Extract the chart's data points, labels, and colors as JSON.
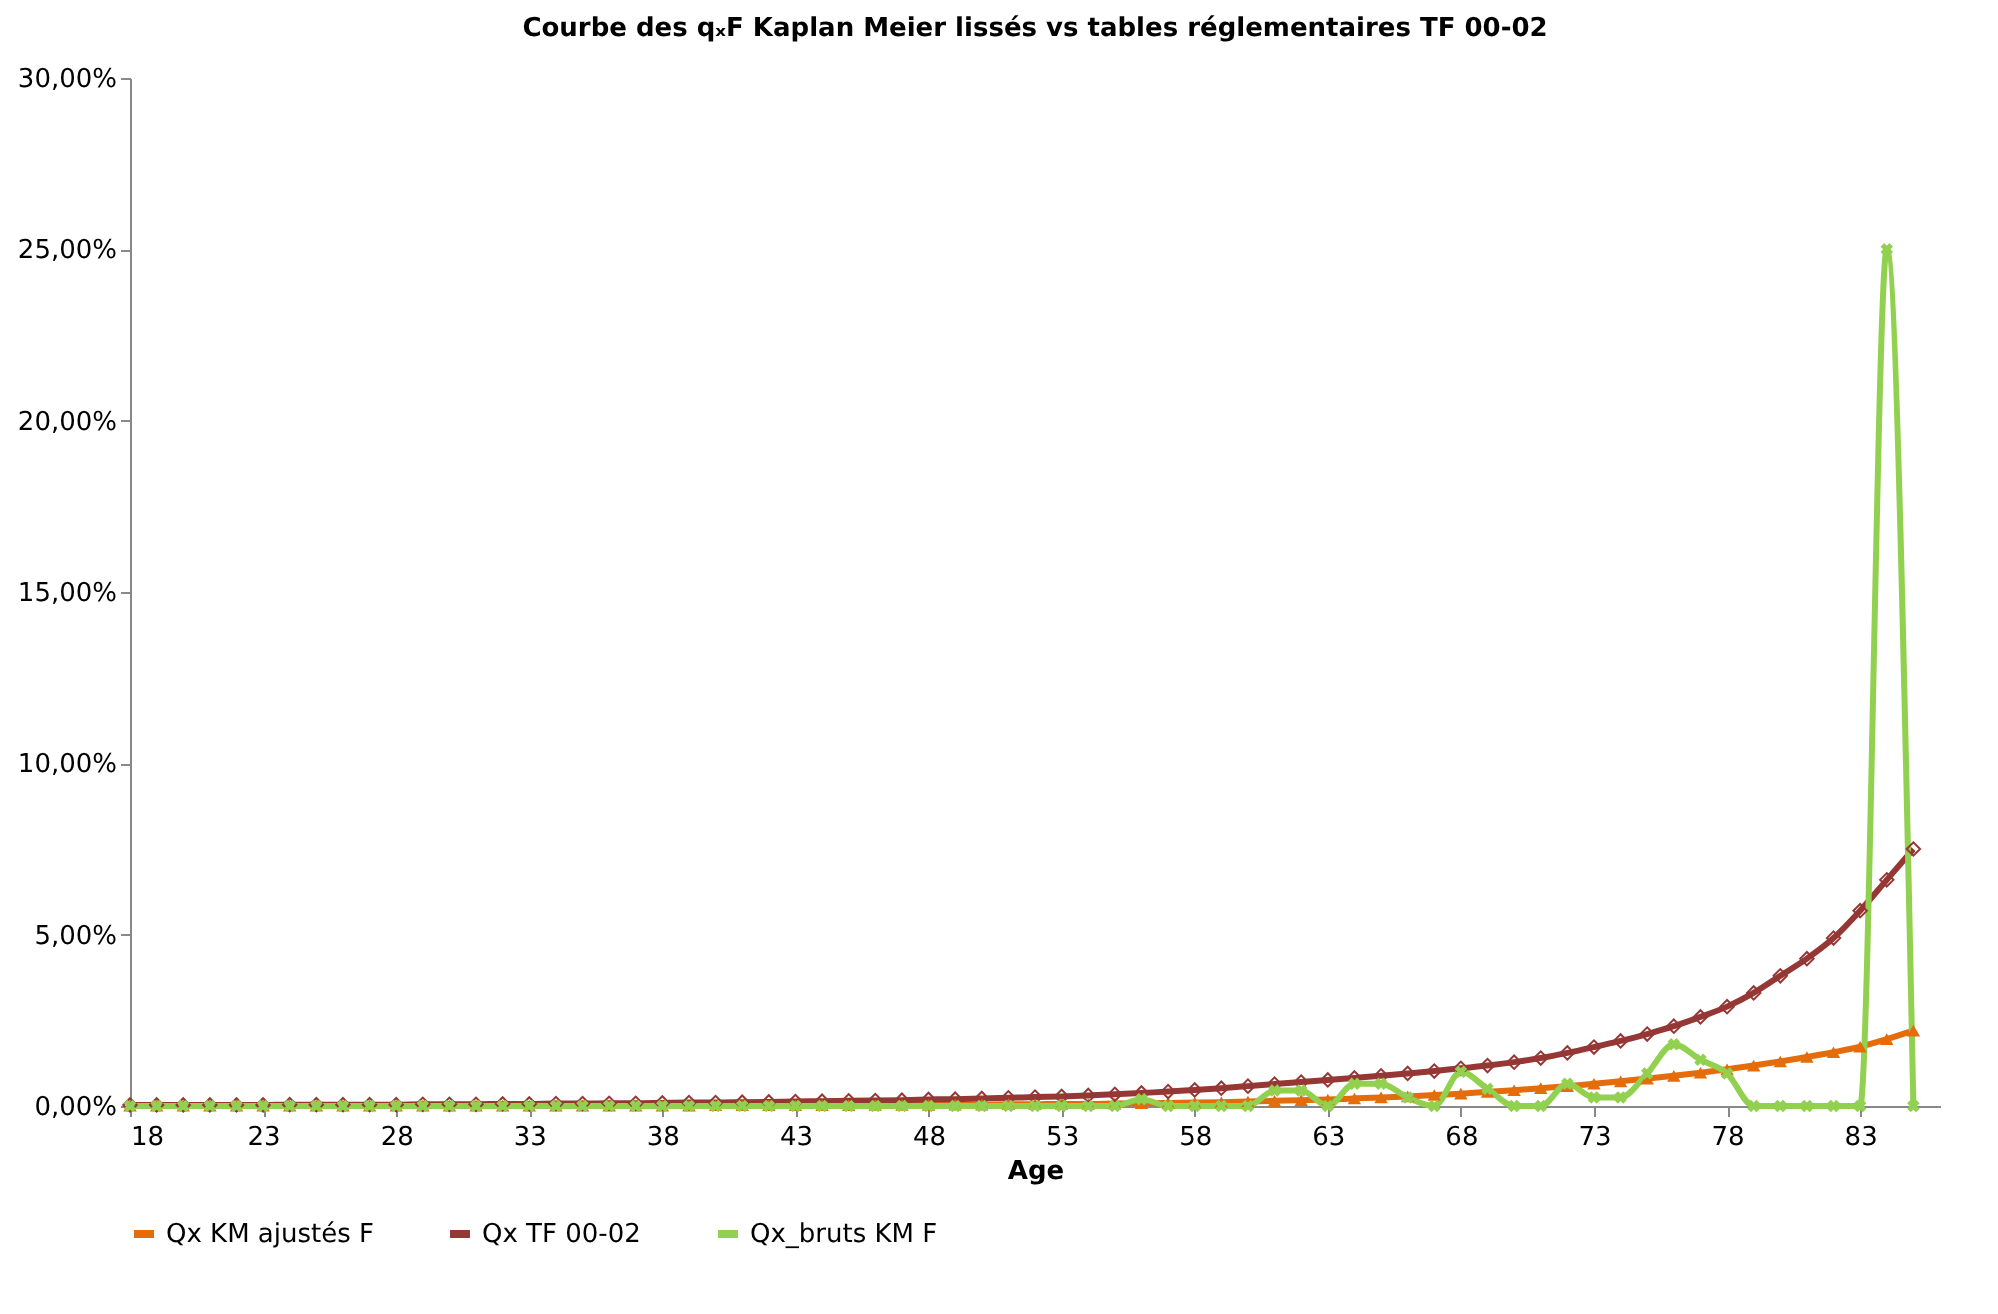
{
  "chart_data": {
    "type": "line",
    "title": "Courbe des qₓF Kaplan Meier lissés vs tables réglementaires TF 00-02",
    "xlabel": "Age",
    "x": [
      18,
      19,
      20,
      21,
      22,
      23,
      24,
      25,
      26,
      27,
      28,
      29,
      30,
      31,
      32,
      33,
      34,
      35,
      36,
      37,
      38,
      39,
      40,
      41,
      42,
      43,
      44,
      45,
      46,
      47,
      48,
      49,
      50,
      51,
      52,
      53,
      54,
      55,
      56,
      57,
      58,
      59,
      60,
      61,
      62,
      63,
      64,
      65,
      66,
      67,
      68,
      69,
      70,
      71,
      72,
      73,
      74,
      75,
      76,
      77,
      78,
      79,
      80,
      81,
      82,
      83,
      84,
      85
    ],
    "series": [
      {
        "name": "Qx KM ajustés F",
        "color": "#e46c0a",
        "marker": "triangle",
        "values": [
          0.01,
          0.01,
          0.01,
          0.01,
          0.01,
          0.01,
          0.01,
          0.01,
          0.01,
          0.01,
          0.01,
          0.01,
          0.01,
          0.01,
          0.01,
          0.01,
          0.01,
          0.01,
          0.01,
          0.01,
          0.01,
          0.01,
          0.02,
          0.02,
          0.02,
          0.02,
          0.02,
          0.02,
          0.03,
          0.03,
          0.03,
          0.04,
          0.04,
          0.05,
          0.05,
          0.06,
          0.06,
          0.07,
          0.08,
          0.09,
          0.1,
          0.11,
          0.13,
          0.15,
          0.17,
          0.19,
          0.22,
          0.25,
          0.28,
          0.32,
          0.36,
          0.41,
          0.46,
          0.52,
          0.58,
          0.65,
          0.72,
          0.8,
          0.88,
          0.97,
          1.07,
          1.18,
          1.3,
          1.43,
          1.57,
          1.73,
          1.95,
          2.2
        ]
      },
      {
        "name": "Qx TF 00-02",
        "color": "#953735",
        "marker": "diamond",
        "values": [
          0.03,
          0.03,
          0.03,
          0.03,
          0.03,
          0.03,
          0.04,
          0.04,
          0.04,
          0.04,
          0.04,
          0.05,
          0.05,
          0.05,
          0.06,
          0.06,
          0.07,
          0.07,
          0.08,
          0.08,
          0.09,
          0.1,
          0.1,
          0.11,
          0.12,
          0.13,
          0.14,
          0.15,
          0.16,
          0.17,
          0.19,
          0.2,
          0.22,
          0.24,
          0.26,
          0.28,
          0.31,
          0.34,
          0.38,
          0.42,
          0.47,
          0.52,
          0.58,
          0.64,
          0.7,
          0.76,
          0.82,
          0.88,
          0.95,
          1.02,
          1.1,
          1.18,
          1.28,
          1.4,
          1.55,
          1.72,
          1.9,
          2.1,
          2.33,
          2.6,
          2.9,
          3.3,
          3.8,
          4.3,
          4.9,
          5.7,
          6.6,
          7.5
        ]
      },
      {
        "name": "Qx_bruts KM F",
        "color": "#92d050",
        "marker": "cross",
        "values": [
          0,
          0,
          0,
          0,
          0,
          0,
          0,
          0,
          0,
          0,
          0,
          0,
          0,
          0,
          0,
          0,
          0,
          0,
          0,
          0,
          0,
          0,
          0,
          0,
          0,
          0,
          0,
          0,
          0,
          0,
          0,
          0,
          0,
          0,
          0,
          0,
          0,
          0,
          0.2,
          0,
          0,
          0,
          0,
          0.45,
          0.45,
          0,
          0.65,
          0.65,
          0.25,
          0,
          1.0,
          0.5,
          0,
          0,
          0.65,
          0.25,
          0.25,
          0.95,
          1.8,
          1.35,
          0.95,
          0,
          0,
          0,
          0,
          0,
          25,
          0
        ]
      }
    ],
    "xlim": [
      18,
      86
    ],
    "xticks": [
      18,
      23,
      28,
      33,
      38,
      43,
      48,
      53,
      58,
      63,
      68,
      73,
      78,
      83
    ],
    "ylim": [
      0,
      30
    ],
    "yticks": [
      {
        "value": 0,
        "label": "0,00%"
      },
      {
        "value": 5,
        "label": "5,00%"
      },
      {
        "value": 10,
        "label": "10,00%"
      },
      {
        "value": 15,
        "label": "15,00%"
      },
      {
        "value": 20,
        "label": "20,00%"
      },
      {
        "value": 25,
        "label": "25,00%"
      },
      {
        "value": 30,
        "label": "30,00%"
      }
    ],
    "legend": "bottom",
    "line_style": "solid"
  }
}
